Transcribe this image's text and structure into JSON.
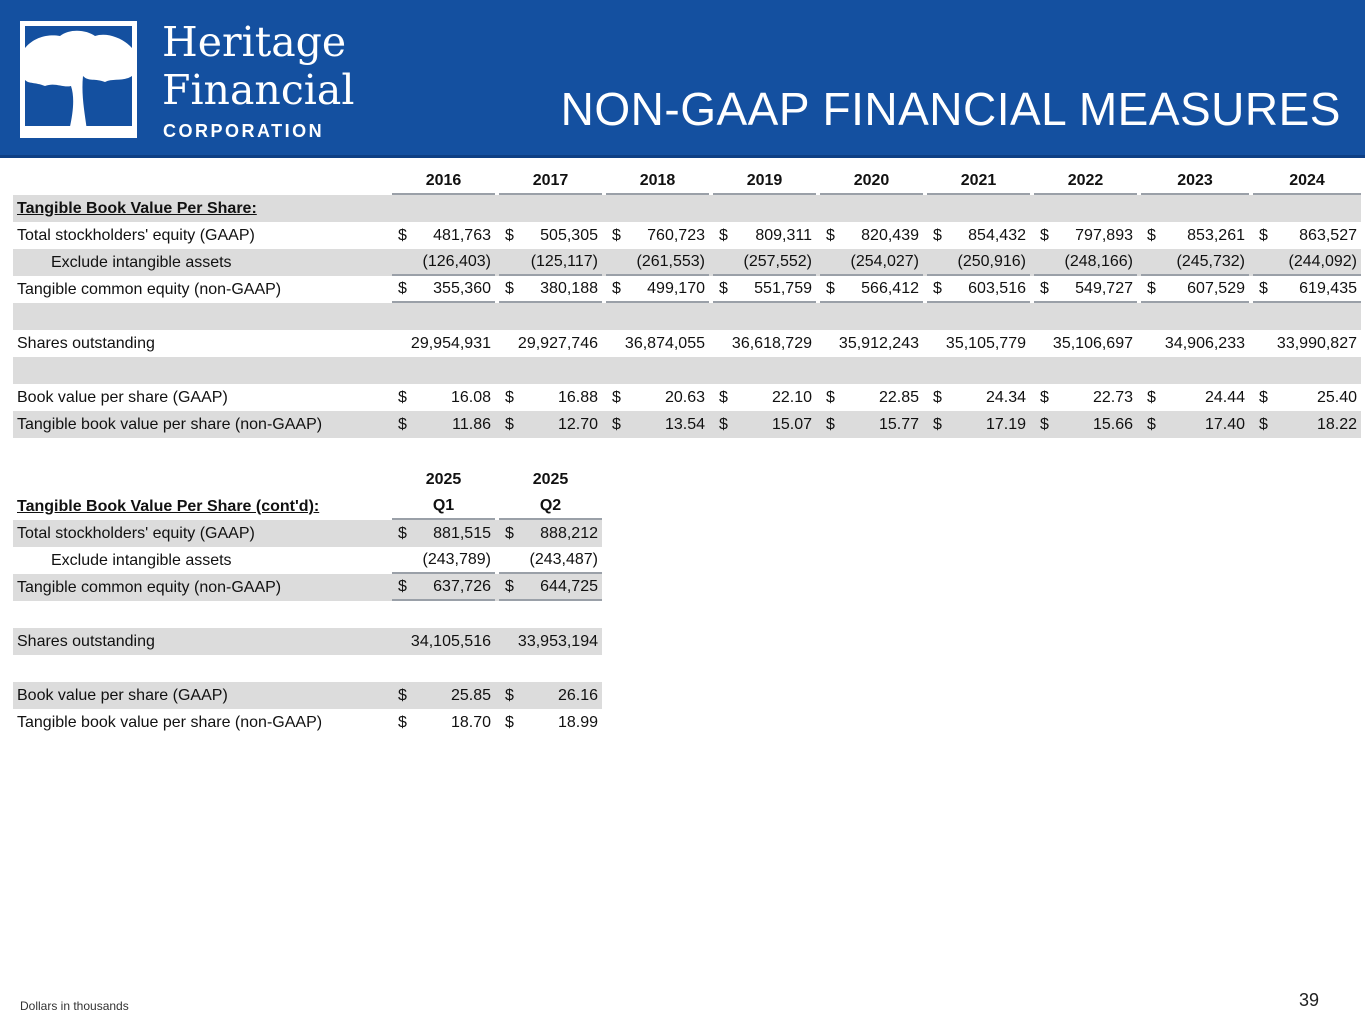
{
  "header": {
    "brand_line1": "Heritage",
    "brand_line2": "Financial",
    "brand_line3": "CORPORATION",
    "title": "NON-GAAP FINANCIAL MEASURES",
    "brand_color": "#1450a0"
  },
  "table1": {
    "headers": [
      [
        "2016"
      ],
      [
        "2017"
      ],
      [
        "2018"
      ],
      [
        "2019"
      ],
      [
        "2020"
      ],
      [
        "2021"
      ],
      [
        "2022"
      ],
      [
        "2023"
      ],
      [
        "2024"
      ]
    ],
    "section_label": "Tangible Book Value Per Share:",
    "rows": [
      {
        "label": "Total stockholders' equity (GAAP)",
        "dollar": true,
        "values": [
          "481,763",
          "505,305",
          "760,723",
          "809,311",
          "820,439",
          "854,432",
          "797,893",
          "853,261",
          "863,527"
        ]
      },
      {
        "label": "Exclude intangible assets",
        "indent": true,
        "underline": true,
        "values": [
          "(126,403)",
          "(125,117)",
          "(261,553)",
          "(257,552)",
          "(254,027)",
          "(250,916)",
          "(248,166)",
          "(245,732)",
          "(244,092)"
        ]
      },
      {
        "label": "Tangible common equity (non-GAAP)",
        "dollar": true,
        "underline": true,
        "values": [
          "355,360",
          "380,188",
          "499,170",
          "551,759",
          "566,412",
          "603,516",
          "549,727",
          "607,529",
          "619,435"
        ]
      },
      {
        "label": "",
        "values": []
      },
      {
        "label": "Shares outstanding",
        "values": [
          "29,954,931",
          "29,927,746",
          "36,874,055",
          "36,618,729",
          "35,912,243",
          "35,105,779",
          "35,106,697",
          "34,906,233",
          "33,990,827"
        ]
      },
      {
        "label": "",
        "values": []
      },
      {
        "label": "Book value per share (GAAP)",
        "dollar": true,
        "values": [
          "16.08",
          "16.88",
          "20.63",
          "22.10",
          "22.85",
          "24.34",
          "22.73",
          "24.44",
          "25.40"
        ]
      },
      {
        "label": "Tangible book value per share (non-GAAP)",
        "dollar": true,
        "values": [
          "11.86",
          "12.70",
          "13.54",
          "15.07",
          "15.77",
          "17.19",
          "15.66",
          "17.40",
          "18.22"
        ]
      }
    ]
  },
  "table2": {
    "headers": [
      [
        "2025",
        "Q1"
      ],
      [
        "2025",
        "Q2"
      ]
    ],
    "section_label": "Tangible Book Value Per Share (cont'd):",
    "rows": [
      {
        "label": "Total stockholders' equity (GAAP)",
        "dollar": true,
        "values": [
          "881,515",
          "888,212"
        ]
      },
      {
        "label": "Exclude intangible assets",
        "indent": true,
        "underline": true,
        "values": [
          "(243,789)",
          "(243,487)"
        ]
      },
      {
        "label": "Tangible common equity (non-GAAP)",
        "dollar": true,
        "underline": true,
        "values": [
          "637,726",
          "644,725"
        ]
      },
      {
        "label": "",
        "values": []
      },
      {
        "label": "Shares outstanding",
        "values": [
          "34,105,516",
          "33,953,194"
        ]
      },
      {
        "label": "",
        "values": []
      },
      {
        "label": "Book value per share (GAAP)",
        "dollar": true,
        "values": [
          "25.85",
          "26.16"
        ]
      },
      {
        "label": "Tangible book value per share (non-GAAP)",
        "dollar": true,
        "values": [
          "18.70",
          "18.99"
        ]
      }
    ]
  },
  "dollar_sign": "$",
  "footer": {
    "note": "Dollars in thousands",
    "page_number": "39"
  }
}
